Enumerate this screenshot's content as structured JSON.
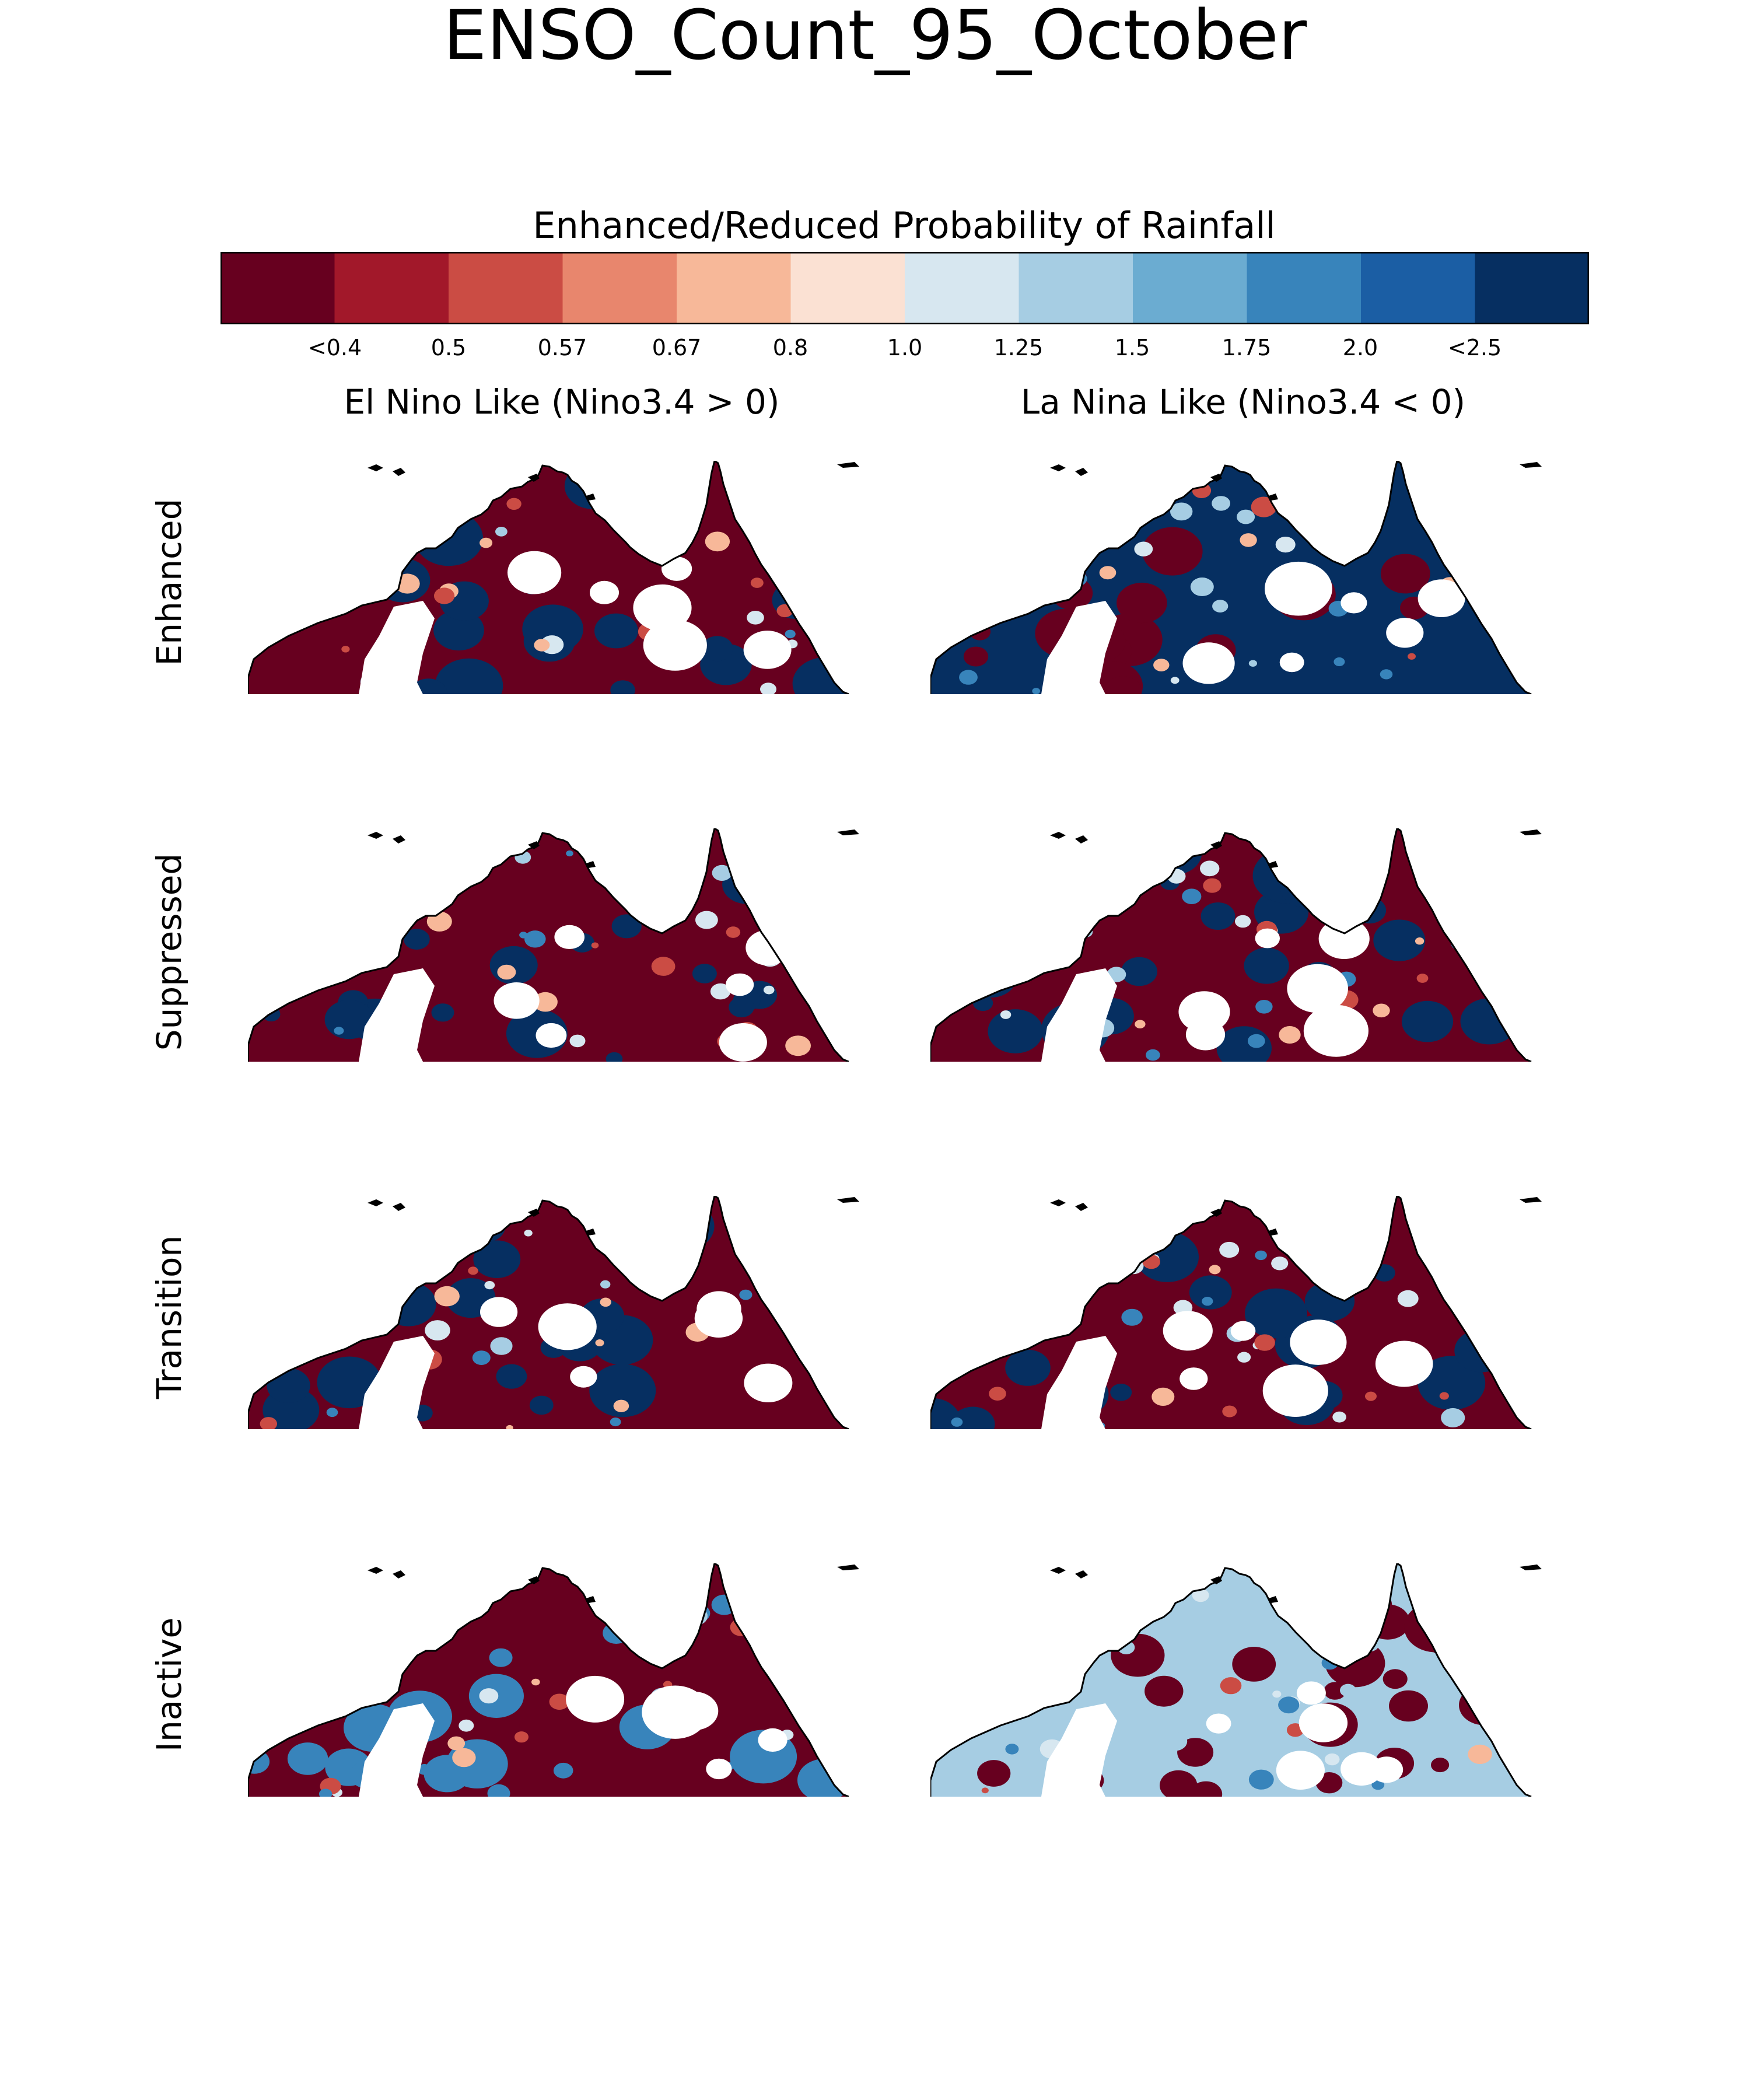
{
  "title": "ENSO_Count_95_October",
  "colorbar": {
    "label": "Enhanced/Reduced Probability of Rainfall",
    "colors": [
      "#67001f",
      "#a2182a",
      "#cb4c44",
      "#e8866d",
      "#f7b899",
      "#fbe1d3",
      "#d7e7f0",
      "#a6cde3",
      "#6bacd1",
      "#3884bb",
      "#1b5ea4",
      "#062f61"
    ],
    "tick_labels": [
      "<0.4",
      "0.5",
      "0.57",
      "0.67",
      "0.8",
      "1.0",
      "1.25",
      "1.5",
      "1.75",
      "2.0",
      "<2.5"
    ]
  },
  "columns": [
    "El Nino Like (Nino3.4 > 0)",
    "La Nina Like (Nino3.4 < 0)"
  ],
  "rows": [
    "Enhanced",
    "Suppressed",
    "Transition",
    "Inactive"
  ],
  "panels": [
    {
      "row": "Enhanced",
      "column": "El Nino Like (Nino3.4 > 0)",
      "dominant_class": "<0.4",
      "secondary_class": "<2.5"
    },
    {
      "row": "Enhanced",
      "column": "La Nina Like (Nino3.4 < 0)",
      "dominant_class": "<2.5",
      "secondary_class": "<0.4"
    },
    {
      "row": "Suppressed",
      "column": "El Nino Like (Nino3.4 > 0)",
      "dominant_class": "<0.4",
      "secondary_class": "<2.5"
    },
    {
      "row": "Suppressed",
      "column": "La Nina Like (Nino3.4 < 0)",
      "dominant_class": "<0.4",
      "secondary_class": "<2.5"
    },
    {
      "row": "Transition",
      "column": "El Nino Like (Nino3.4 > 0)",
      "dominant_class": "<0.4",
      "secondary_class": "<2.5"
    },
    {
      "row": "Transition",
      "column": "La Nina Like (Nino3.4 < 0)",
      "dominant_class": "<0.4",
      "secondary_class": "<2.5"
    },
    {
      "row": "Inactive",
      "column": "El Nino Like (Nino3.4 > 0)",
      "dominant_class": "<0.4",
      "secondary_class": "1.75"
    },
    {
      "row": "Inactive",
      "column": "La Nina Like (Nino3.4 < 0)",
      "dominant_class": "1.25",
      "secondary_class": "<0.4"
    }
  ]
}
